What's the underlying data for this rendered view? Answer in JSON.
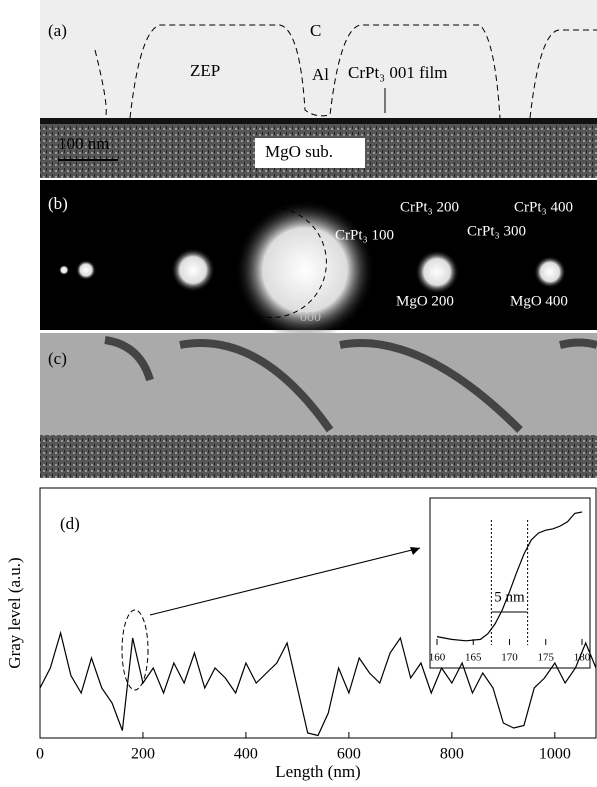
{
  "panel_a": {
    "label": "(a)",
    "layers": [
      "C",
      "ZEP",
      "Al",
      "CrPt₃ 001 film"
    ],
    "scale_bar": "100 nm",
    "substrate": "MgO sub."
  },
  "panel_b": {
    "label": "(b)",
    "spots": [
      "CrPt₃ 100",
      "CrPt₃ 200",
      "CrPt₃ 300",
      "CrPt₃ 400",
      "MgO 200",
      "MgO 400",
      "000"
    ]
  },
  "panel_c": {
    "label": "(c)"
  },
  "chart_data": {
    "type": "line",
    "label": "(d)",
    "x_label": "Length (nm)",
    "y_label": "Gray level (a.u.)",
    "color": "#000",
    "x": [
      0,
      20,
      40,
      60,
      80,
      100,
      120,
      140,
      160,
      180,
      200,
      220,
      240,
      260,
      280,
      300,
      320,
      340,
      360,
      380,
      400,
      420,
      440,
      460,
      480,
      500,
      520,
      540,
      560,
      580,
      600,
      620,
      640,
      660,
      680,
      700,
      720,
      740,
      760,
      780,
      800,
      820,
      840,
      860,
      880,
      900,
      920,
      940,
      960,
      980,
      1000,
      1020,
      1040,
      1060,
      1080
    ],
    "values": [
      20,
      28,
      42,
      25,
      18,
      32,
      20,
      14,
      3,
      40,
      22,
      28,
      18,
      30,
      22,
      34,
      20,
      28,
      24,
      18,
      30,
      22,
      26,
      30,
      38,
      20,
      2,
      1,
      10,
      28,
      18,
      32,
      26,
      22,
      34,
      40,
      24,
      30,
      18,
      28,
      22,
      30,
      18,
      26,
      20,
      6,
      4,
      5,
      20,
      24,
      30,
      22,
      28,
      38,
      28
    ],
    "xlim": [
      0,
      1080
    ],
    "ylim": [
      0,
      100
    ],
    "xticks": [
      0,
      200,
      400,
      600,
      800,
      1000
    ],
    "inset": {
      "type": "line",
      "x": [
        160,
        162,
        164,
        166,
        167,
        168,
        169,
        170,
        171,
        172,
        173,
        174,
        175,
        176,
        177,
        178,
        179,
        180
      ],
      "values": [
        6,
        4,
        3,
        4,
        8,
        15,
        25,
        38,
        52,
        65,
        75,
        80,
        82,
        83,
        85,
        88,
        94,
        95
      ],
      "xlim": [
        160,
        180
      ],
      "ylim": [
        0,
        100
      ],
      "xticks": [
        160,
        165,
        170,
        175,
        180
      ],
      "guides": [
        167.5,
        172.5
      ],
      "annotation": "5 nm"
    }
  }
}
